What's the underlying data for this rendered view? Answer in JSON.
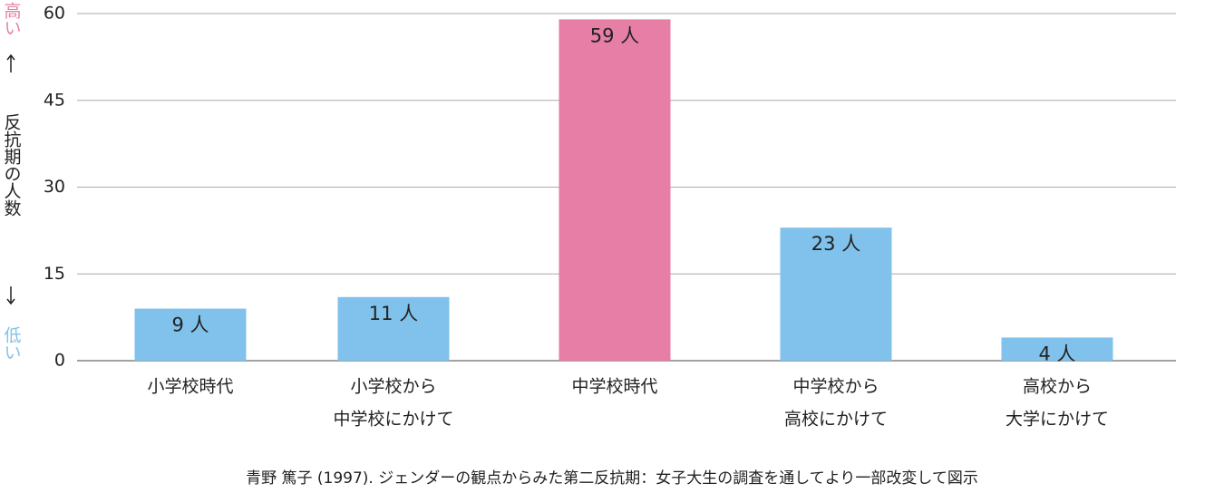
{
  "chart_data": {
    "type": "bar",
    "ylabel_high": "高い",
    "ylabel": "反抗期の人数",
    "ylabel_low": "低い",
    "categories": [
      [
        "小学校時代"
      ],
      [
        "小学校から",
        "中学校にかけて"
      ],
      [
        "中学校時代"
      ],
      [
        "中学校から",
        "高校にかけて"
      ],
      [
        "高校から",
        "大学にかけて"
      ]
    ],
    "values": [
      9,
      11,
      59,
      23,
      4
    ],
    "value_labels": [
      "9 人",
      "11 人",
      "59 人",
      "23 人",
      "4 人"
    ],
    "colors": [
      "#80c2eb",
      "#80c2eb",
      "#e67ea5",
      "#80c2eb",
      "#80c2eb"
    ],
    "ylim": [
      0,
      60
    ],
    "yticks": [
      0,
      15,
      30,
      45,
      60
    ],
    "grid": true,
    "source": "青野 篤子 (1997). ジェンダーの観点からみた第二反抗期：女子大生の調査を通してより一部改変して図示"
  }
}
